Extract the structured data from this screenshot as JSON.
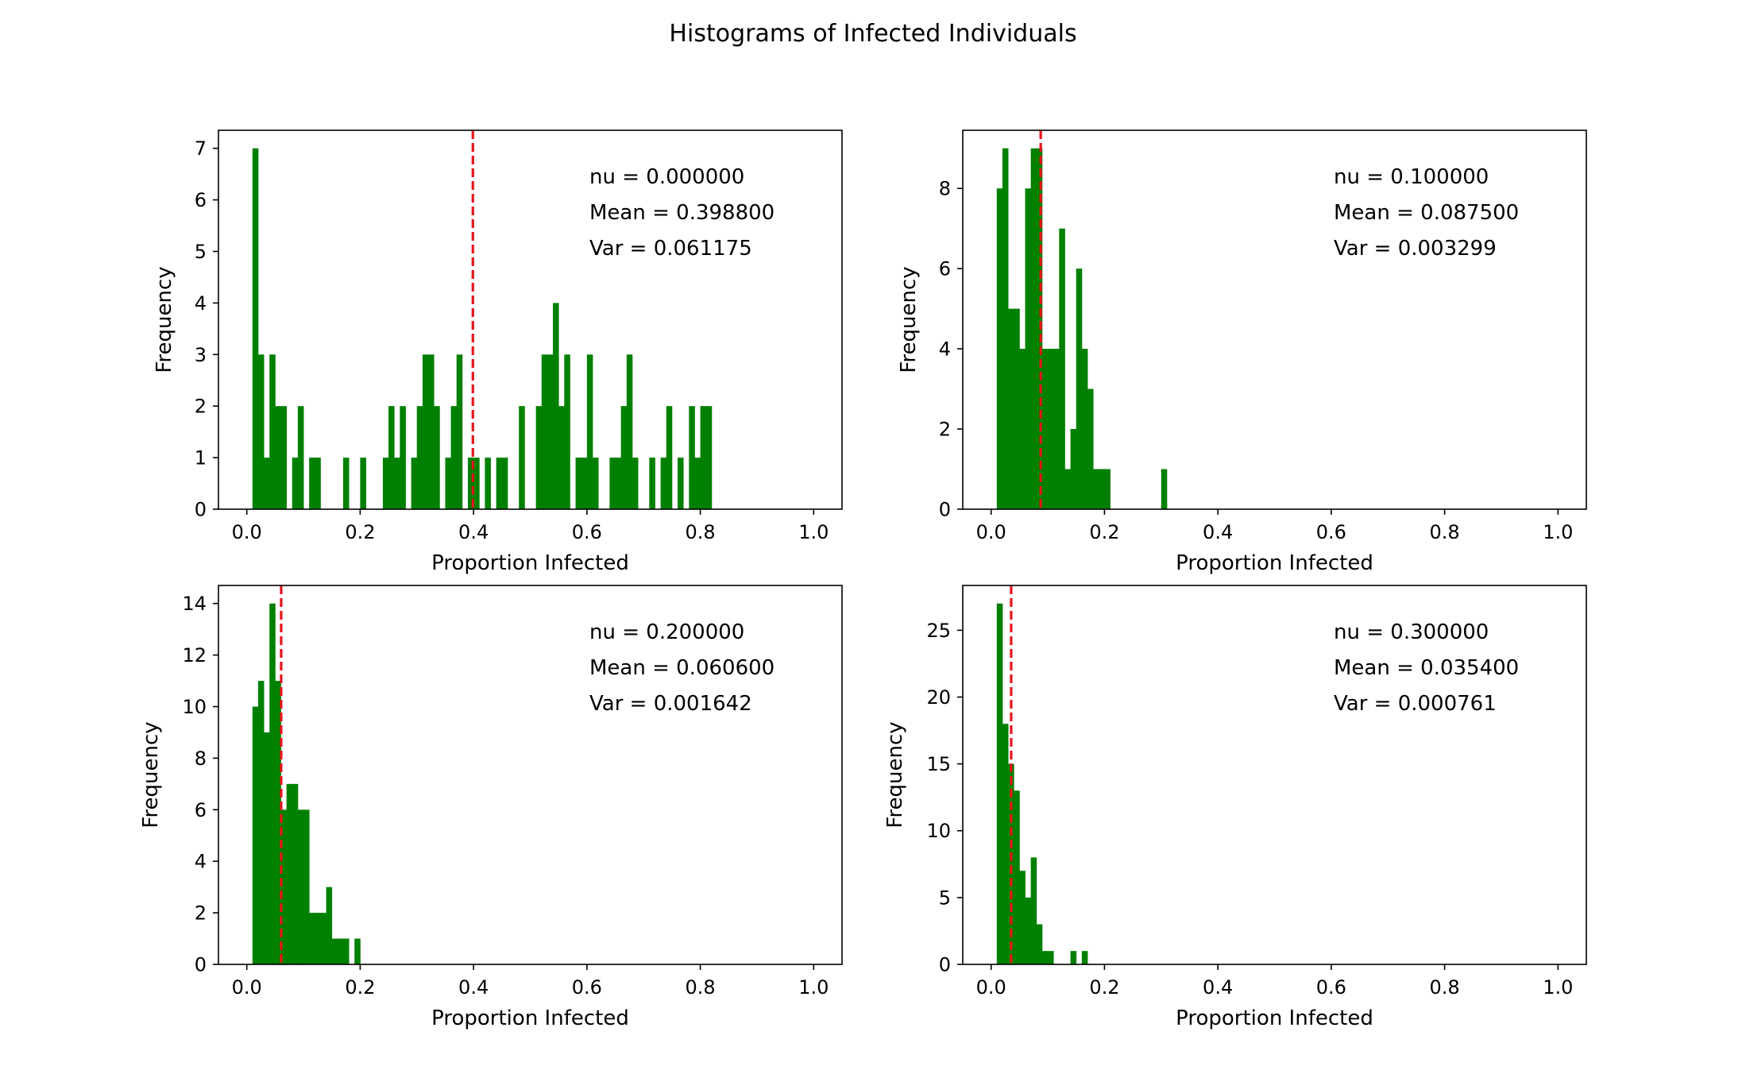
{
  "figure": {
    "title": "Histograms of Infected Individuals"
  },
  "colors": {
    "bar": "#008000",
    "mean_line": "#e8141c",
    "axes": "#000000"
  },
  "chart_data": [
    {
      "type": "bar",
      "subtype": "histogram",
      "xlabel": "Proportion Infected",
      "ylabel": "Frequency",
      "xlim": [
        -0.05,
        1.05
      ],
      "ylim": [
        0,
        7.35
      ],
      "xticks": [
        "0.0",
        "0.2",
        "0.4",
        "0.6",
        "0.8",
        "1.0"
      ],
      "yticks": [
        "0",
        "1",
        "2",
        "3",
        "4",
        "5",
        "6",
        "7"
      ],
      "mean_line": 0.3988,
      "annotations": [
        "nu = 0.000000",
        "Mean = 0.398800",
        "Var = 0.061175"
      ],
      "bin_width": 0.01,
      "bins": [
        {
          "x": 0.01,
          "count": 7
        },
        {
          "x": 0.02,
          "count": 3
        },
        {
          "x": 0.03,
          "count": 1
        },
        {
          "x": 0.04,
          "count": 3
        },
        {
          "x": 0.05,
          "count": 2
        },
        {
          "x": 0.06,
          "count": 2
        },
        {
          "x": 0.08,
          "count": 1
        },
        {
          "x": 0.09,
          "count": 2
        },
        {
          "x": 0.11,
          "count": 1
        },
        {
          "x": 0.12,
          "count": 1
        },
        {
          "x": 0.17,
          "count": 1
        },
        {
          "x": 0.2,
          "count": 1
        },
        {
          "x": 0.24,
          "count": 1
        },
        {
          "x": 0.25,
          "count": 2
        },
        {
          "x": 0.26,
          "count": 1
        },
        {
          "x": 0.27,
          "count": 2
        },
        {
          "x": 0.29,
          "count": 1
        },
        {
          "x": 0.3,
          "count": 2
        },
        {
          "x": 0.31,
          "count": 3
        },
        {
          "x": 0.32,
          "count": 3
        },
        {
          "x": 0.33,
          "count": 2
        },
        {
          "x": 0.35,
          "count": 1
        },
        {
          "x": 0.36,
          "count": 2
        },
        {
          "x": 0.37,
          "count": 3
        },
        {
          "x": 0.39,
          "count": 1
        },
        {
          "x": 0.4,
          "count": 1
        },
        {
          "x": 0.42,
          "count": 1
        },
        {
          "x": 0.44,
          "count": 1
        },
        {
          "x": 0.45,
          "count": 1
        },
        {
          "x": 0.48,
          "count": 2
        },
        {
          "x": 0.51,
          "count": 2
        },
        {
          "x": 0.52,
          "count": 3
        },
        {
          "x": 0.53,
          "count": 3
        },
        {
          "x": 0.54,
          "count": 4
        },
        {
          "x": 0.55,
          "count": 2
        },
        {
          "x": 0.56,
          "count": 3
        },
        {
          "x": 0.58,
          "count": 1
        },
        {
          "x": 0.59,
          "count": 1
        },
        {
          "x": 0.6,
          "count": 3
        },
        {
          "x": 0.61,
          "count": 1
        },
        {
          "x": 0.64,
          "count": 1
        },
        {
          "x": 0.65,
          "count": 1
        },
        {
          "x": 0.66,
          "count": 2
        },
        {
          "x": 0.67,
          "count": 3
        },
        {
          "x": 0.68,
          "count": 1
        },
        {
          "x": 0.71,
          "count": 1
        },
        {
          "x": 0.73,
          "count": 1
        },
        {
          "x": 0.74,
          "count": 2
        },
        {
          "x": 0.76,
          "count": 1
        },
        {
          "x": 0.78,
          "count": 2
        },
        {
          "x": 0.79,
          "count": 1
        },
        {
          "x": 0.8,
          "count": 2
        },
        {
          "x": 0.81,
          "count": 2
        }
      ]
    },
    {
      "type": "bar",
      "subtype": "histogram",
      "xlabel": "Proportion Infected",
      "ylabel": "Frequency",
      "xlim": [
        -0.05,
        1.05
      ],
      "ylim": [
        0,
        9.45
      ],
      "xticks": [
        "0.0",
        "0.2",
        "0.4",
        "0.6",
        "0.8",
        "1.0"
      ],
      "yticks": [
        "0",
        "2",
        "4",
        "6",
        "8"
      ],
      "mean_line": 0.0875,
      "annotations": [
        "nu = 0.100000",
        "Mean = 0.087500",
        "Var = 0.003299"
      ],
      "bin_width": 0.01,
      "bins": [
        {
          "x": 0.01,
          "count": 8
        },
        {
          "x": 0.02,
          "count": 9
        },
        {
          "x": 0.03,
          "count": 5
        },
        {
          "x": 0.04,
          "count": 5
        },
        {
          "x": 0.05,
          "count": 4
        },
        {
          "x": 0.06,
          "count": 8
        },
        {
          "x": 0.07,
          "count": 9
        },
        {
          "x": 0.08,
          "count": 9
        },
        {
          "x": 0.09,
          "count": 4
        },
        {
          "x": 0.1,
          "count": 4
        },
        {
          "x": 0.11,
          "count": 4
        },
        {
          "x": 0.12,
          "count": 7
        },
        {
          "x": 0.13,
          "count": 1
        },
        {
          "x": 0.14,
          "count": 2
        },
        {
          "x": 0.15,
          "count": 6
        },
        {
          "x": 0.16,
          "count": 4
        },
        {
          "x": 0.17,
          "count": 3
        },
        {
          "x": 0.18,
          "count": 1
        },
        {
          "x": 0.19,
          "count": 1
        },
        {
          "x": 0.2,
          "count": 1
        },
        {
          "x": 0.3,
          "count": 1
        }
      ]
    },
    {
      "type": "bar",
      "subtype": "histogram",
      "xlabel": "Proportion Infected",
      "ylabel": "Frequency",
      "xlim": [
        -0.05,
        1.05
      ],
      "ylim": [
        0,
        14.7
      ],
      "xticks": [
        "0.0",
        "0.2",
        "0.4",
        "0.6",
        "0.8",
        "1.0"
      ],
      "yticks": [
        "0",
        "2",
        "4",
        "6",
        "8",
        "10",
        "12",
        "14"
      ],
      "mean_line": 0.0606,
      "annotations": [
        "nu = 0.200000",
        "Mean = 0.060600",
        "Var = 0.001642"
      ],
      "bin_width": 0.01,
      "bins": [
        {
          "x": 0.01,
          "count": 10
        },
        {
          "x": 0.02,
          "count": 11
        },
        {
          "x": 0.03,
          "count": 9
        },
        {
          "x": 0.04,
          "count": 14
        },
        {
          "x": 0.05,
          "count": 11
        },
        {
          "x": 0.06,
          "count": 6
        },
        {
          "x": 0.07,
          "count": 7
        },
        {
          "x": 0.08,
          "count": 7
        },
        {
          "x": 0.09,
          "count": 6
        },
        {
          "x": 0.1,
          "count": 6
        },
        {
          "x": 0.11,
          "count": 2
        },
        {
          "x": 0.12,
          "count": 2
        },
        {
          "x": 0.13,
          "count": 2
        },
        {
          "x": 0.14,
          "count": 3
        },
        {
          "x": 0.15,
          "count": 1
        },
        {
          "x": 0.16,
          "count": 1
        },
        {
          "x": 0.17,
          "count": 1
        },
        {
          "x": 0.19,
          "count": 1
        }
      ]
    },
    {
      "type": "bar",
      "subtype": "histogram",
      "xlabel": "Proportion Infected",
      "ylabel": "Frequency",
      "xlim": [
        -0.05,
        1.05
      ],
      "ylim": [
        0,
        28.35
      ],
      "xticks": [
        "0.0",
        "0.2",
        "0.4",
        "0.6",
        "0.8",
        "1.0"
      ],
      "yticks": [
        "0",
        "5",
        "10",
        "15",
        "20",
        "25"
      ],
      "mean_line": 0.0354,
      "annotations": [
        "nu = 0.300000",
        "Mean = 0.035400",
        "Var = 0.000761"
      ],
      "bin_width": 0.01,
      "bins": [
        {
          "x": 0.01,
          "count": 27
        },
        {
          "x": 0.02,
          "count": 18
        },
        {
          "x": 0.03,
          "count": 15
        },
        {
          "x": 0.04,
          "count": 13
        },
        {
          "x": 0.05,
          "count": 7
        },
        {
          "x": 0.06,
          "count": 5
        },
        {
          "x": 0.07,
          "count": 8
        },
        {
          "x": 0.08,
          "count": 3
        },
        {
          "x": 0.09,
          "count": 1
        },
        {
          "x": 0.1,
          "count": 1
        },
        {
          "x": 0.14,
          "count": 1
        },
        {
          "x": 0.16,
          "count": 1
        }
      ]
    }
  ]
}
